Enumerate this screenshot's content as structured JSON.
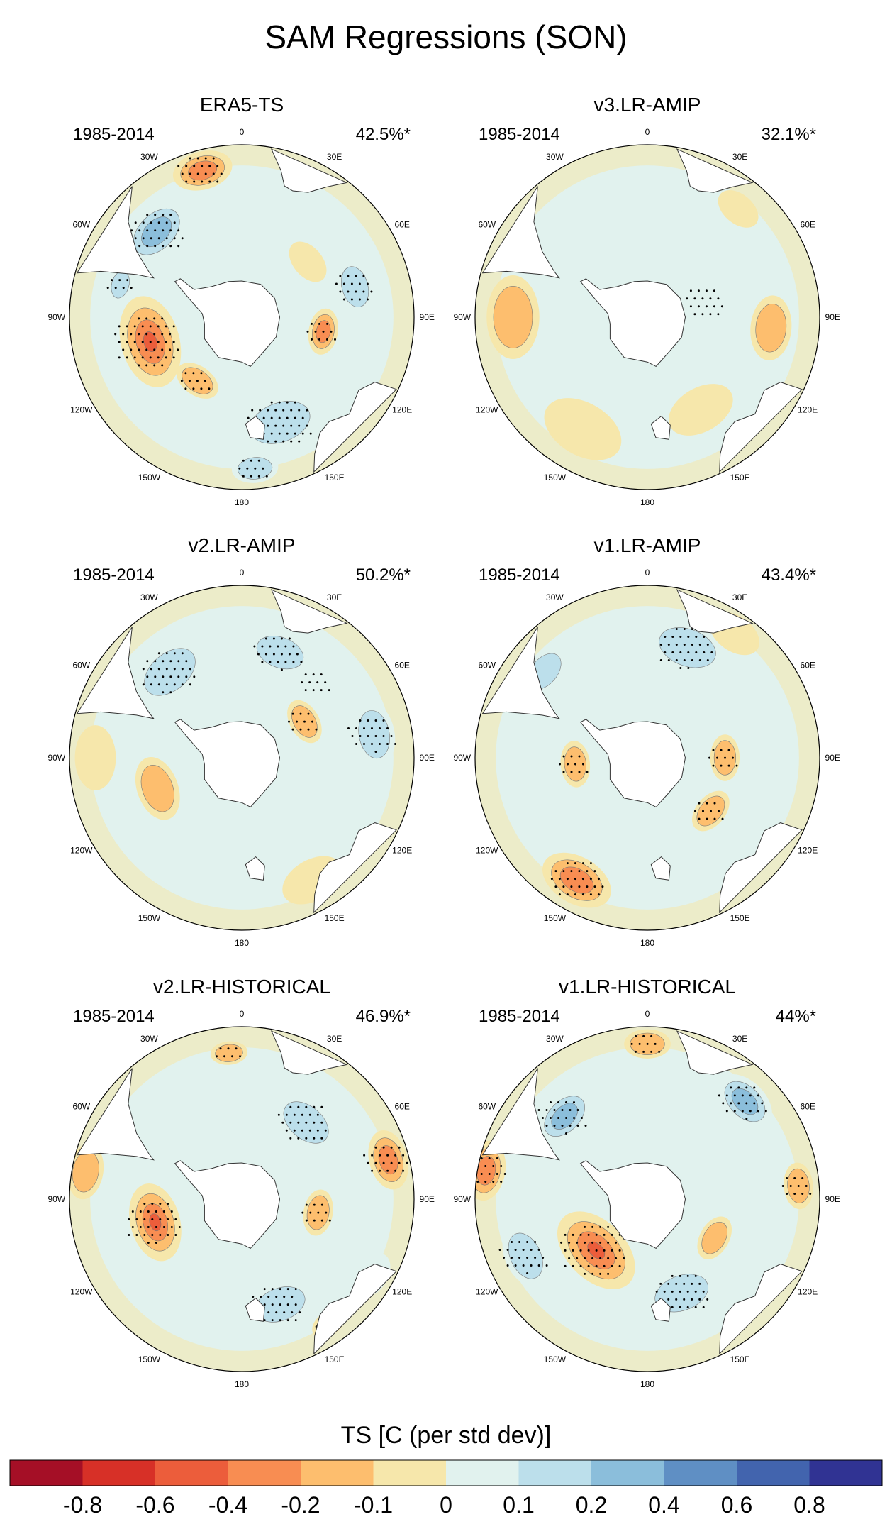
{
  "chart_data": {
    "type": "polar-contour-map",
    "title": "SAM Regressions (SON)",
    "colorbar": {
      "title": "TS [C (per std dev)]",
      "ticks": [
        "-0.8",
        "-0.6",
        "-0.4",
        "-0.2",
        "-0.1",
        "0",
        "0.1",
        "0.2",
        "0.4",
        "0.6",
        "0.8"
      ],
      "colors": [
        "#a50f26",
        "#d73027",
        "#ec5d3b",
        "#f88d52",
        "#fdbe6e",
        "#f6e7ab",
        "#e1f2ee",
        "#bcdfeb",
        "#8bbedb",
        "#5f8fc4",
        "#4264ae",
        "#303393"
      ]
    },
    "panels": [
      {
        "id": "era5",
        "title": "ERA5-TS",
        "period": "1985-2014",
        "variance": "42.5%*",
        "features": [
          {
            "sign": "neg",
            "lon": -45,
            "r": 0.7,
            "size": 0.16,
            "level": 3,
            "stip": true
          },
          {
            "sign": "pos",
            "lon": -15,
            "r": 0.88,
            "size": 0.13,
            "level": 3,
            "stip": true
          },
          {
            "sign": "pos",
            "lon": -105,
            "r": 0.55,
            "size": 0.2,
            "level": 4,
            "stip": true
          },
          {
            "sign": "neg",
            "lon": -75,
            "r": 0.73,
            "size": 0.08,
            "level": 2,
            "stip": true
          },
          {
            "sign": "pos",
            "lon": 100,
            "r": 0.48,
            "size": 0.1,
            "level": 3,
            "stip": true
          },
          {
            "sign": "pos",
            "lon": -145,
            "r": 0.45,
            "size": 0.1,
            "level": 2,
            "stip": true
          },
          {
            "sign": "neg",
            "lon": 75,
            "r": 0.68,
            "size": 0.12,
            "level": 2,
            "stip": true
          },
          {
            "sign": "neg",
            "lon": 160,
            "r": 0.65,
            "size": 0.18,
            "level": 2,
            "stip": true
          },
          {
            "sign": "neg",
            "lon": 20,
            "r": 0.68,
            "size": 0.13,
            "level": 1,
            "stip": false
          },
          {
            "sign": "neg",
            "lon": 175,
            "r": 0.88,
            "size": 0.1,
            "level": 2,
            "stip": true
          },
          {
            "sign": "pos",
            "lon": 50,
            "r": 0.5,
            "size": 0.1,
            "level": 1,
            "stip": false
          }
        ]
      },
      {
        "id": "v3amip",
        "title": "v3.LR-AMIP",
        "period": "1985-2014",
        "variance": "32.1%*",
        "features": [
          {
            "sign": "neg",
            "lon": 10,
            "r": 0.52,
            "size": 0.2,
            "level": 1,
            "stip": false
          },
          {
            "sign": "neg",
            "lon": 75,
            "r": 0.35,
            "size": 0.12,
            "level": 1,
            "stip": true
          },
          {
            "sign": "pos",
            "lon": -90,
            "r": 0.78,
            "size": 0.18,
            "level": 2,
            "stip": false
          },
          {
            "sign": "pos",
            "lon": 95,
            "r": 0.72,
            "size": 0.14,
            "level": 2,
            "stip": false
          },
          {
            "sign": "pos",
            "lon": -150,
            "r": 0.75,
            "size": 0.18,
            "level": 1,
            "stip": false
          },
          {
            "sign": "pos",
            "lon": 150,
            "r": 0.62,
            "size": 0.15,
            "level": 1,
            "stip": false
          },
          {
            "sign": "neg",
            "lon": -40,
            "r": 0.7,
            "size": 0.1,
            "level": 1,
            "stip": false
          },
          {
            "sign": "pos",
            "lon": 40,
            "r": 0.82,
            "size": 0.1,
            "level": 1,
            "stip": false
          },
          {
            "sign": "neg",
            "lon": -120,
            "r": 0.42,
            "size": 0.1,
            "level": 1,
            "stip": false
          }
        ]
      },
      {
        "id": "v2amip",
        "title": "v2.LR-AMIP",
        "period": "1985-2014",
        "variance": "50.2%*",
        "features": [
          {
            "sign": "neg",
            "lon": -40,
            "r": 0.65,
            "size": 0.17,
            "level": 2,
            "stip": true
          },
          {
            "sign": "neg",
            "lon": 20,
            "r": 0.65,
            "size": 0.14,
            "level": 2,
            "stip": true
          },
          {
            "sign": "neg",
            "lon": 80,
            "r": 0.78,
            "size": 0.14,
            "level": 2,
            "stip": true
          },
          {
            "sign": "pos",
            "lon": 60,
            "r": 0.42,
            "size": 0.1,
            "level": 2,
            "stip": true
          },
          {
            "sign": "neg",
            "lon": 150,
            "r": 0.55,
            "size": 0.15,
            "level": 1,
            "stip": false
          },
          {
            "sign": "pos",
            "lon": -110,
            "r": 0.52,
            "size": 0.14,
            "level": 2,
            "stip": false
          },
          {
            "sign": "pos",
            "lon": -90,
            "r": 0.85,
            "size": 0.14,
            "level": 1,
            "stip": false
          },
          {
            "sign": "pos",
            "lon": 150,
            "r": 0.82,
            "size": 0.14,
            "level": 1,
            "stip": false
          },
          {
            "sign": "neg",
            "lon": 45,
            "r": 0.62,
            "size": 0.1,
            "level": 1,
            "stip": true
          }
        ]
      },
      {
        "id": "v1amip",
        "title": "v1.LR-AMIP",
        "period": "1985-2014",
        "variance": "43.4%*",
        "features": [
          {
            "sign": "neg",
            "lon": 20,
            "r": 0.68,
            "size": 0.17,
            "level": 2,
            "stip": true
          },
          {
            "sign": "neg",
            "lon": -50,
            "r": 0.78,
            "size": 0.12,
            "level": 2,
            "stip": false
          },
          {
            "sign": "pos",
            "lon": 90,
            "r": 0.45,
            "size": 0.1,
            "level": 2,
            "stip": true
          },
          {
            "sign": "pos",
            "lon": 130,
            "r": 0.48,
            "size": 0.1,
            "level": 2,
            "stip": true
          },
          {
            "sign": "pos",
            "lon": -150,
            "r": 0.82,
            "size": 0.16,
            "level": 3,
            "stip": true
          },
          {
            "sign": "pos",
            "lon": -95,
            "r": 0.42,
            "size": 0.1,
            "level": 2,
            "stip": true
          },
          {
            "sign": "neg",
            "lon": 160,
            "r": 0.7,
            "size": 0.14,
            "level": 1,
            "stip": false
          },
          {
            "sign": "neg",
            "lon": -120,
            "r": 0.62,
            "size": 0.12,
            "level": 1,
            "stip": false
          },
          {
            "sign": "pos",
            "lon": 35,
            "r": 0.88,
            "size": 0.12,
            "level": 1,
            "stip": false
          }
        ]
      },
      {
        "id": "v2hist",
        "title": "v2.LR-HISTORICAL",
        "period": "1985-2014",
        "variance": "46.9%*",
        "features": [
          {
            "sign": "pos",
            "lon": -105,
            "r": 0.52,
            "size": 0.17,
            "level": 4,
            "stip": true
          },
          {
            "sign": "neg",
            "lon": 40,
            "r": 0.58,
            "size": 0.15,
            "level": 2,
            "stip": true
          },
          {
            "sign": "pos",
            "lon": 75,
            "r": 0.88,
            "size": 0.13,
            "level": 3,
            "stip": true
          },
          {
            "sign": "neg",
            "lon": 160,
            "r": 0.65,
            "size": 0.15,
            "level": 2,
            "stip": true
          },
          {
            "sign": "neg",
            "lon": -40,
            "r": 0.65,
            "size": 0.14,
            "level": 1,
            "stip": false
          },
          {
            "sign": "pos",
            "lon": -5,
            "r": 0.85,
            "size": 0.08,
            "level": 2,
            "stip": true
          },
          {
            "sign": "pos",
            "lon": -80,
            "r": 0.92,
            "size": 0.12,
            "level": 2,
            "stip": false
          },
          {
            "sign": "pos",
            "lon": 145,
            "r": 0.88,
            "size": 0.08,
            "level": 3,
            "stip": true
          },
          {
            "sign": "pos",
            "lon": 100,
            "r": 0.45,
            "size": 0.1,
            "level": 2,
            "stip": true
          },
          {
            "sign": "neg",
            "lon": 120,
            "r": 0.88,
            "size": 0.1,
            "level": 1,
            "stip": false
          }
        ]
      },
      {
        "id": "v1hist",
        "title": "v1.LR-HISTORICAL",
        "period": "1985-2014",
        "variance": "44%*",
        "features": [
          {
            "sign": "pos",
            "lon": -135,
            "r": 0.42,
            "size": 0.2,
            "level": 4,
            "stip": true
          },
          {
            "sign": "neg",
            "lon": -45,
            "r": 0.68,
            "size": 0.14,
            "level": 3,
            "stip": true
          },
          {
            "sign": "neg",
            "lon": 45,
            "r": 0.8,
            "size": 0.14,
            "level": 3,
            "stip": true
          },
          {
            "sign": "neg",
            "lon": -115,
            "r": 0.78,
            "size": 0.14,
            "level": 2,
            "stip": true
          },
          {
            "sign": "neg",
            "lon": 160,
            "r": 0.58,
            "size": 0.16,
            "level": 2,
            "stip": true
          },
          {
            "sign": "pos",
            "lon": -80,
            "r": 0.95,
            "size": 0.13,
            "level": 3,
            "stip": true
          },
          {
            "sign": "pos",
            "lon": 0,
            "r": 0.9,
            "size": 0.1,
            "level": 2,
            "stip": true
          },
          {
            "sign": "pos",
            "lon": 85,
            "r": 0.88,
            "size": 0.1,
            "level": 2,
            "stip": true
          },
          {
            "sign": "pos",
            "lon": 120,
            "r": 0.45,
            "size": 0.1,
            "level": 2,
            "stip": false
          },
          {
            "sign": "neg",
            "lon": 100,
            "r": 0.68,
            "size": 0.12,
            "level": 1,
            "stip": false
          }
        ]
      }
    ],
    "lon_labels": [
      {
        "label": "0",
        "lon": 0
      },
      {
        "label": "30E",
        "lon": 30
      },
      {
        "label": "60E",
        "lon": 60
      },
      {
        "label": "90E",
        "lon": 90
      },
      {
        "label": "120E",
        "lon": 120
      },
      {
        "label": "150E",
        "lon": 150
      },
      {
        "label": "180",
        "lon": 180
      },
      {
        "label": "150W",
        "lon": -150
      },
      {
        "label": "120W",
        "lon": -120
      },
      {
        "label": "90W",
        "lon": -90
      },
      {
        "label": "60W",
        "lon": -60
      },
      {
        "label": "30W",
        "lon": -30
      }
    ]
  }
}
